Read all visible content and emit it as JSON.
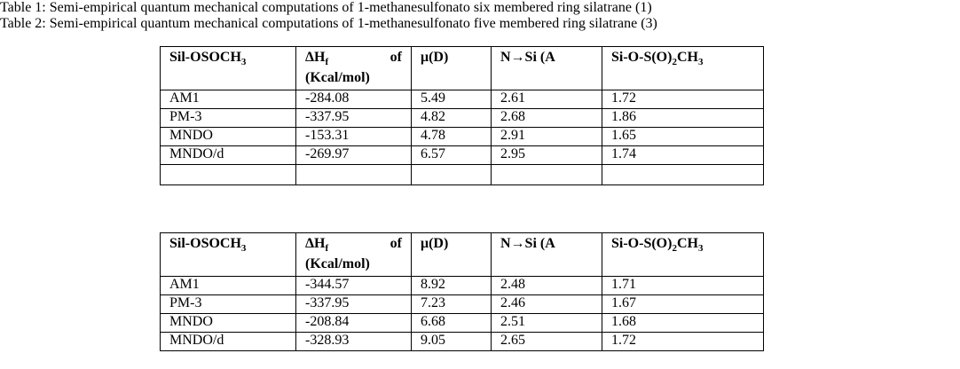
{
  "tables": [
    {
      "title": "Table 1: Semi-empirical quantum mechanical computations of 1-methanesulfonato six membered ring silatrane (1)",
      "header": [
        [
          "Sil-OSOCH",
          "3"
        ],
        [
          "ΔH",
          "f",
          "of",
          "(Kcal/mol)"
        ],
        [
          "μ(D)"
        ],
        [
          "N→Si (A"
        ],
        [
          "Si-O-S(O)",
          "2",
          "CH",
          "3"
        ]
      ],
      "rows": [
        [
          "AM1",
          "-284.08",
          "5.49",
          "2.61",
          "1.72"
        ],
        [
          "PM-3",
          "-337.95",
          "4.82",
          "2.68",
          "1.86"
        ],
        [
          "MNDO",
          "-153.31",
          "4.78",
          "2.91",
          "1.65"
        ],
        [
          "MNDO/d",
          "-269.97",
          "6.57",
          "2.95",
          "1.74"
        ]
      ]
    },
    {
      "title": "Table 2: Semi-empirical quantum mechanical computations of 1-methanesulfonato five membered ring silatrane (3)",
      "header": [
        [
          "Sil-OSOCH",
          "3"
        ],
        [
          "ΔH",
          "f",
          "of",
          "(Kcal/mol)"
        ],
        [
          "μ(D)"
        ],
        [
          "N→Si (A"
        ],
        [
          "Si-O-S(O)",
          "2",
          "CH",
          "3"
        ]
      ],
      "rows": [
        [
          "AM1",
          "-344.57",
          "8.92",
          "2.48",
          "1.71"
        ],
        [
          "PM-3",
          "-337.95",
          "7.23",
          "2.46",
          "1.67"
        ],
        [
          "MNDO",
          "-208.84",
          "6.68",
          "2.51",
          "1.68"
        ],
        [
          "MNDO/d",
          "-328.93",
          "9.05",
          "2.65",
          "1.72"
        ]
      ]
    }
  ]
}
